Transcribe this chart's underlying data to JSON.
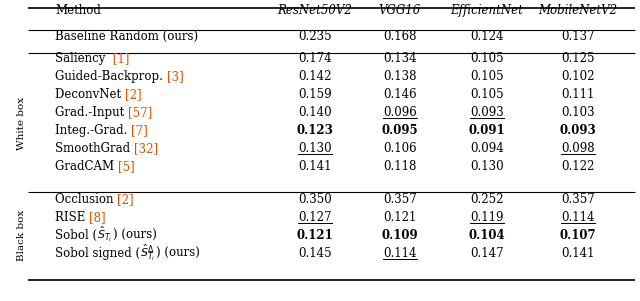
{
  "columns": [
    "Method",
    "ResNet50V2",
    "VGG16",
    "EfficientNet",
    "MobileNetV2"
  ],
  "baseline_row": {
    "method": "Baseline Random (ours)",
    "values": [
      "0.235",
      "0.168",
      "0.124",
      "0.137"
    ],
    "bold": [
      false,
      false,
      false,
      false
    ],
    "underline": [
      false,
      false,
      false,
      false
    ]
  },
  "white_box_rows": [
    {
      "parts": [
        [
          "Saliency ",
          false
        ],
        [
          " [1]",
          true
        ]
      ],
      "values": [
        "0.174",
        "0.134",
        "0.105",
        "0.125"
      ],
      "bold": [
        false,
        false,
        false,
        false
      ],
      "underline": [
        false,
        false,
        false,
        false
      ]
    },
    {
      "parts": [
        [
          "Guided-Backprop. ",
          false
        ],
        [
          "[3]",
          true
        ]
      ],
      "values": [
        "0.142",
        "0.138",
        "0.105",
        "0.102"
      ],
      "bold": [
        false,
        false,
        false,
        false
      ],
      "underline": [
        false,
        false,
        false,
        false
      ]
    },
    {
      "parts": [
        [
          "DeconvNet ",
          false
        ],
        [
          "[2]",
          true
        ]
      ],
      "values": [
        "0.159",
        "0.146",
        "0.105",
        "0.111"
      ],
      "bold": [
        false,
        false,
        false,
        false
      ],
      "underline": [
        false,
        false,
        false,
        false
      ]
    },
    {
      "parts": [
        [
          "Grad.-Input ",
          false
        ],
        [
          "[57]",
          true
        ]
      ],
      "values": [
        "0.140",
        "0.096",
        "0.093",
        "0.103"
      ],
      "bold": [
        false,
        false,
        false,
        false
      ],
      "underline": [
        false,
        true,
        true,
        false
      ]
    },
    {
      "parts": [
        [
          "Integ.-Grad. ",
          false
        ],
        [
          "[7]",
          true
        ]
      ],
      "values": [
        "0.123",
        "0.095",
        "0.091",
        "0.093"
      ],
      "bold": [
        true,
        true,
        true,
        true
      ],
      "underline": [
        false,
        false,
        false,
        false
      ]
    },
    {
      "parts": [
        [
          "SmoothGrad ",
          false
        ],
        [
          "[32]",
          true
        ]
      ],
      "values": [
        "0.130",
        "0.106",
        "0.094",
        "0.098"
      ],
      "bold": [
        false,
        false,
        false,
        false
      ],
      "underline": [
        true,
        false,
        false,
        true
      ]
    },
    {
      "parts": [
        [
          "GradCAM ",
          false
        ],
        [
          "[5]",
          true
        ]
      ],
      "values": [
        "0.141",
        "0.118",
        "0.130",
        "0.122"
      ],
      "bold": [
        false,
        false,
        false,
        false
      ],
      "underline": [
        false,
        false,
        false,
        false
      ]
    }
  ],
  "black_box_rows": [
    {
      "parts": [
        [
          "Occlusion ",
          false
        ],
        [
          "[2]",
          true
        ]
      ],
      "values": [
        "0.350",
        "0.357",
        "0.252",
        "0.357"
      ],
      "bold": [
        false,
        false,
        false,
        false
      ],
      "underline": [
        false,
        false,
        false,
        false
      ]
    },
    {
      "parts": [
        [
          "RISE ",
          false
        ],
        [
          "[8]",
          true
        ]
      ],
      "values": [
        "0.127",
        "0.121",
        "0.119",
        "0.114"
      ],
      "bold": [
        false,
        false,
        false,
        false
      ],
      "underline": [
        true,
        false,
        true,
        true
      ]
    },
    {
      "parts": [
        [
          "Sobol (",
          false
        ],
        [
          "MATH_S_Ti",
          false
        ],
        [
          ") (ours)",
          false
        ]
      ],
      "values": [
        "0.121",
        "0.109",
        "0.104",
        "0.107"
      ],
      "bold": [
        true,
        true,
        true,
        true
      ],
      "underline": [
        false,
        false,
        false,
        false
      ]
    },
    {
      "parts": [
        [
          "Sobol signed (",
          false
        ],
        [
          "MATH_S_Ti_delta",
          false
        ],
        [
          ") (ours)",
          false
        ]
      ],
      "values": [
        "0.145",
        "0.114",
        "0.147",
        "0.141"
      ],
      "bold": [
        false,
        false,
        false,
        false
      ],
      "underline": [
        false,
        true,
        false,
        false
      ]
    }
  ],
  "ref_color": "#e05000",
  "normal_color": "#000000",
  "background_color": "#ffffff",
  "rotated_label_white": "White box",
  "rotated_label_black": "Black box"
}
